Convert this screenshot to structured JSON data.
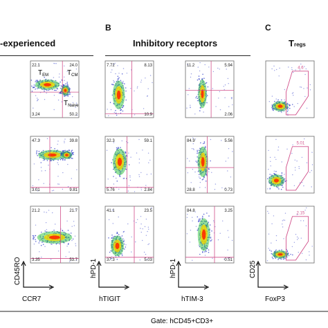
{
  "panels": {
    "A": {
      "title": "-experienced"
    },
    "B": {
      "letter": "B",
      "title": "Inhibitory receptors"
    },
    "C": {
      "letter": "C",
      "title_main": "T",
      "title_sub": "regs"
    }
  },
  "gate_label": "Gate: hCD45+CD3+",
  "axes": {
    "col1": {
      "x": "CCR7",
      "y": "CD45RO"
    },
    "col2": {
      "x": "hTIGIT",
      "y": "hPD-1"
    },
    "col3": {
      "x": "hTIM-3",
      "y": "hPD-1"
    },
    "col4": {
      "x": "FoxP3",
      "y": "CD25"
    }
  },
  "quadrant_labels": {
    "tem": "T",
    "tem_sub": "EM",
    "tcm": "T",
    "tcm_sub": "CM",
    "tnaive": "T",
    "tnaive_sub": "Naive"
  },
  "plots": [
    {
      "id": "r1c1",
      "values": [
        "22.1",
        "24.0",
        "3.24",
        "50.2"
      ]
    },
    {
      "id": "r2c1",
      "values": [
        "47.3",
        "39.8",
        "3.01",
        "9.81"
      ]
    },
    {
      "id": "r3c1",
      "values": [
        "21.2",
        "21.7",
        "3.35",
        "53.7"
      ]
    },
    {
      "id": "r1c2",
      "values": [
        "7.72",
        "8.13",
        "",
        "10.9"
      ]
    },
    {
      "id": "r2c2",
      "values": [
        "32.3",
        "59.1",
        "5.76",
        "2.84"
      ]
    },
    {
      "id": "r3c2",
      "values": [
        "41.1",
        "23.5",
        "37.3",
        "5.03"
      ]
    },
    {
      "id": "r1c3",
      "values": [
        "11.2",
        "5.94",
        "",
        "2.06"
      ]
    },
    {
      "id": "r2c3",
      "values": [
        "84.9",
        "5.56",
        "28.8",
        "0.73"
      ]
    },
    {
      "id": "r3c3",
      "values": [
        "84.8",
        "3.25",
        "",
        "0.51"
      ]
    },
    {
      "id": "r1c4",
      "values": [
        "4.6"
      ]
    },
    {
      "id": "r2c4",
      "values": [
        "5.01"
      ]
    },
    {
      "id": "r3c4",
      "values": [
        "2.15"
      ]
    }
  ],
  "colors": {
    "dot": "#2b39c8",
    "gate": "#d14f8a",
    "hot": "#ff2a00",
    "warm": "#f6d800",
    "mid": "#3ec84a"
  }
}
